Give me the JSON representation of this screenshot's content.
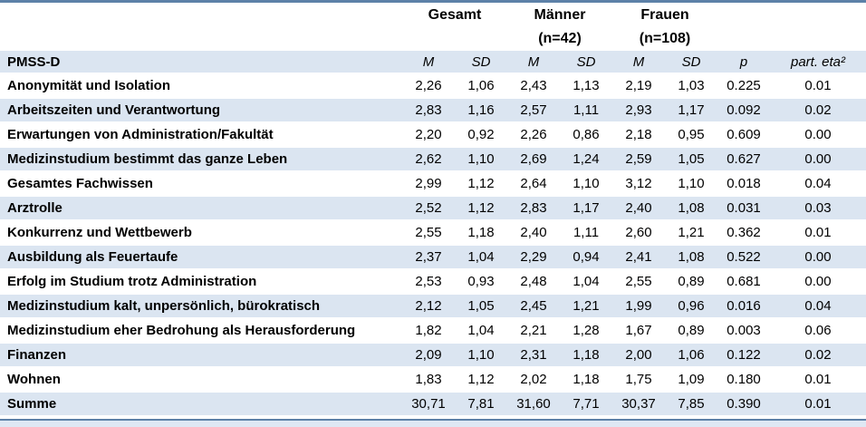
{
  "table": {
    "groups": [
      {
        "title": "Gesamt",
        "subtitle": ""
      },
      {
        "title": "Männer",
        "subtitle": "(n=42)"
      },
      {
        "title": "Frauen",
        "subtitle": "(n=108)"
      }
    ],
    "scale_label": "PMSS-D",
    "stat_columns": [
      "M",
      "SD",
      "M",
      "SD",
      "M",
      "SD",
      "p",
      "part. eta²"
    ],
    "rows": [
      {
        "label": "Anonymität und Isolation",
        "values": [
          "2,26",
          "1,06",
          "2,43",
          "1,13",
          "2,19",
          "1,03",
          "0.225",
          "0.01"
        ]
      },
      {
        "label": "Arbeitszeiten und Verantwortung",
        "values": [
          "2,83",
          "1,16",
          "2,57",
          "1,11",
          "2,93",
          "1,17",
          "0.092",
          "0.02"
        ]
      },
      {
        "label": "Erwartungen von Administration/Fakultät",
        "values": [
          "2,20",
          "0,92",
          "2,26",
          "0,86",
          "2,18",
          "0,95",
          "0.609",
          "0.00"
        ]
      },
      {
        "label": "Medizinstudium bestimmt das ganze Leben",
        "values": [
          "2,62",
          "1,10",
          "2,69",
          "1,24",
          "2,59",
          "1,05",
          "0.627",
          "0.00"
        ]
      },
      {
        "label": "Gesamtes Fachwissen",
        "values": [
          "2,99",
          "1,12",
          "2,64",
          "1,10",
          "3,12",
          "1,10",
          "0.018",
          "0.04"
        ]
      },
      {
        "label": "Arztrolle",
        "values": [
          "2,52",
          "1,12",
          "2,83",
          "1,17",
          "2,40",
          "1,08",
          "0.031",
          "0.03"
        ]
      },
      {
        "label": "Konkurrenz und Wettbewerb",
        "values": [
          "2,55",
          "1,18",
          "2,40",
          "1,11",
          "2,60",
          "1,21",
          "0.362",
          "0.01"
        ]
      },
      {
        "label": "Ausbildung als Feuertaufe",
        "values": [
          "2,37",
          "1,04",
          "2,29",
          "0,94",
          "2,41",
          "1,08",
          "0.522",
          "0.00"
        ]
      },
      {
        "label": "Erfolg im Studium trotz Administration",
        "values": [
          "2,53",
          "0,93",
          "2,48",
          "1,04",
          "2,55",
          "0,89",
          "0.681",
          "0.00"
        ]
      },
      {
        "label": "Medizinstudium kalt, unpersönlich, bürokratisch",
        "values": [
          "2,12",
          "1,05",
          "2,45",
          "1,21",
          "1,99",
          "0,96",
          "0.016",
          "0.04"
        ]
      },
      {
        "label": "Medizinstudium eher Bedrohung als Herausforderung",
        "values": [
          "1,82",
          "1,04",
          "2,21",
          "1,28",
          "1,67",
          "0,89",
          "0.003",
          "0.06"
        ]
      },
      {
        "label": "Finanzen",
        "values": [
          "2,09",
          "1,10",
          "2,31",
          "1,18",
          "2,00",
          "1,06",
          "0.122",
          "0.02"
        ]
      },
      {
        "label": "Wohnen",
        "values": [
          "1,83",
          "1,12",
          "2,02",
          "1,18",
          "1,75",
          "1,09",
          "0.180",
          "0.01"
        ]
      },
      {
        "label": "Summe",
        "values": [
          "30,71",
          "7,81",
          "31,60",
          "7,71",
          "30,37",
          "7,85",
          "0.390",
          "0.01"
        ]
      }
    ]
  },
  "colors": {
    "band_light_blue": "#dbe5f1",
    "rule_steel_blue": "#5d81a8",
    "text": "#000000"
  }
}
